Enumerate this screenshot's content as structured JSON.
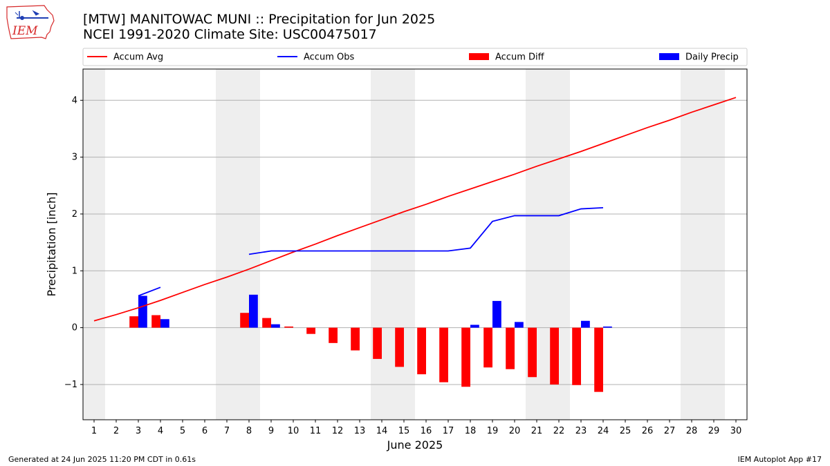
{
  "header": {
    "title_line1": "[MTW] MANITOWAC MUNI :: Precipitation for Jun 2025",
    "title_line2": "NCEI 1991-2020 Climate Site: USC00475017"
  },
  "logo": {
    "text": "IEM",
    "icon": "iem-iowa-logo",
    "color": "#d62728"
  },
  "footer": {
    "left": "Generated at 24 Jun 2025 11:20 PM CDT in 0.61s",
    "right": "IEM Autoplot App #17"
  },
  "chart_data": {
    "type": "bar",
    "xlabel": "June 2025",
    "ylabel": "Precipitation [inch]",
    "x": [
      1,
      2,
      3,
      4,
      5,
      6,
      7,
      8,
      9,
      10,
      11,
      12,
      13,
      14,
      15,
      16,
      17,
      18,
      19,
      20,
      21,
      22,
      23,
      24,
      25,
      26,
      27,
      28,
      29,
      30
    ],
    "xlim": [
      0.5,
      30.5
    ],
    "ylim": [
      -1.62,
      4.55
    ],
    "yticks": [
      -1,
      0,
      1,
      2,
      3,
      4
    ],
    "ytick_labels": [
      "−1",
      "0",
      "1",
      "2",
      "3",
      "4"
    ],
    "grid": "horizontal",
    "weekend_shading": [
      [
        0.5,
        1.5
      ],
      [
        6.5,
        8.5
      ],
      [
        13.5,
        15.5
      ],
      [
        20.5,
        22.5
      ],
      [
        27.5,
        29.5
      ]
    ],
    "legend_position": "top",
    "series": [
      {
        "name": "Accum Avg",
        "kind": "line",
        "color": "#ff0000",
        "x": [
          1,
          2,
          3,
          4,
          5,
          6,
          7,
          8,
          9,
          10,
          11,
          12,
          13,
          14,
          15,
          16,
          17,
          18,
          19,
          20,
          21,
          22,
          23,
          24,
          25,
          26,
          27,
          28,
          29,
          30
        ],
        "values": [
          0.12,
          0.23,
          0.35,
          0.48,
          0.62,
          0.76,
          0.89,
          1.03,
          1.18,
          1.33,
          1.47,
          1.62,
          1.76,
          1.9,
          2.04,
          2.17,
          2.31,
          2.44,
          2.57,
          2.7,
          2.84,
          2.97,
          3.1,
          3.24,
          3.38,
          3.52,
          3.65,
          3.79,
          3.92,
          4.05
        ]
      },
      {
        "name": "Accum Obs",
        "kind": "line",
        "color": "#0000ff",
        "segments": [
          {
            "x": [
              3,
              4
            ],
            "values": [
              0.56,
              0.71
            ]
          },
          {
            "x": [
              8,
              9,
              10,
              11,
              12,
              13,
              14,
              15,
              16,
              17,
              18,
              19,
              20,
              21,
              22,
              23,
              24
            ],
            "values": [
              1.29,
              1.35,
              1.35,
              1.35,
              1.35,
              1.35,
              1.35,
              1.35,
              1.35,
              1.35,
              1.4,
              1.87,
              1.97,
              1.97,
              1.97,
              2.09,
              2.11
            ]
          }
        ]
      },
      {
        "name": "Accum Diff",
        "kind": "bar",
        "color": "#ff0000",
        "x": [
          3,
          4,
          8,
          9,
          10,
          11,
          12,
          13,
          14,
          15,
          16,
          17,
          18,
          19,
          20,
          21,
          22,
          23,
          24
        ],
        "values": [
          0.2,
          0.22,
          0.26,
          0.17,
          0.02,
          -0.11,
          -0.27,
          -0.4,
          -0.55,
          -0.69,
          -0.82,
          -0.96,
          -1.04,
          -0.7,
          -0.73,
          -0.87,
          -1.0,
          -1.01,
          -1.13
        ]
      },
      {
        "name": "Daily Precip",
        "kind": "bar",
        "color": "#0000ff",
        "x": [
          3,
          4,
          8,
          9,
          18,
          19,
          20,
          23,
          24
        ],
        "values": [
          0.56,
          0.15,
          0.58,
          0.06,
          0.05,
          0.47,
          0.1,
          0.12,
          0.02
        ]
      }
    ]
  }
}
